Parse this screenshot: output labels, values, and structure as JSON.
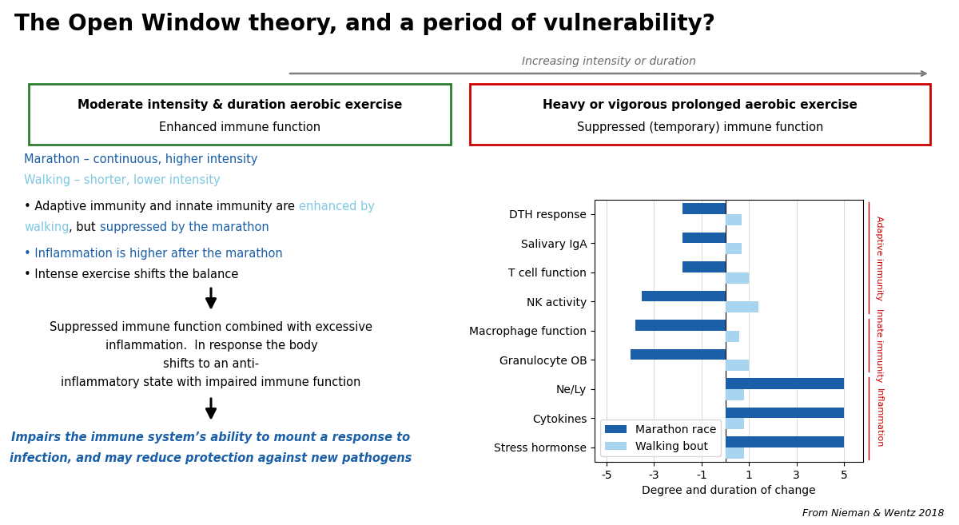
{
  "chart_data": {
    "type": "bar",
    "orientation": "horizontal",
    "title": "The Open Window theory, and a period of vulnerability?",
    "arrow_label": "Increasing intensity or duration",
    "boxes": [
      {
        "title": "Moderate intensity & duration aerobic exercise",
        "subtitle": "Enhanced immune function",
        "color": "#2e7d32"
      },
      {
        "title": "Heavy or vigorous prolonged aerobic exercise",
        "subtitle": "Suppressed (temporary) immune function",
        "color": "#cc0000"
      }
    ],
    "notes_top": [
      [
        {
          "text": "Marathon – continuous, higher intensity",
          "color": "#1a5fa8"
        }
      ],
      [
        {
          "text": "Walking – shorter, lower intensity",
          "color": "#7ec8e3"
        }
      ],
      [
        {
          "text": "• Adaptive immunity and innate immunity are ",
          "color": "#000000"
        },
        {
          "text": "enhanced by",
          "color": "#7ec8e3"
        }
      ],
      [
        {
          "text": "walking",
          "color": "#7ec8e3"
        },
        {
          "text": ", but ",
          "color": "#000000"
        },
        {
          "text": "suppressed by the marathon",
          "color": "#1a5fa8"
        }
      ],
      [
        {
          "text": "• Inflammation is higher after the marathon",
          "color": "#1a5fa8"
        }
      ],
      [
        {
          "text": "• Intense exercise shifts the balance",
          "color": "#000000"
        }
      ]
    ],
    "notes_middle": [
      [
        {
          "text": "Suppressed immune function combined with excessive",
          "color": "#000000"
        }
      ],
      [
        {
          "text": "inflammation.  In response the body",
          "color": "#000000"
        }
      ],
      [
        {
          "text": "shifts to an anti-",
          "color": "#000000"
        }
      ],
      [
        {
          "text": "inflammatory state with impaired immune function",
          "color": "#000000"
        }
      ]
    ],
    "notes_bottom": [
      [
        {
          "text": "Impairs the immune system’s ability to mount a response to",
          "color": "#1a5fa8"
        }
      ],
      [
        {
          "text": "infection, and may reduce protection against new pathogens",
          "color": "#1a5fa8"
        }
      ]
    ],
    "citation": "From Nieman & Wentz 2018",
    "categories": [
      "DTH response",
      "Salivary IgA",
      "T cell function",
      "NK activity",
      "Macrophage function",
      "Granulocyte OB",
      "Ne/Ly",
      "Cytokines",
      "Stress hormonse"
    ],
    "series": [
      {
        "name": "Marathon race",
        "color": "#1a5fa8",
        "values": [
          -1.8,
          -1.8,
          -1.8,
          -3.5,
          -3.8,
          -4.0,
          5.0,
          5.0,
          5.0
        ]
      },
      {
        "name": "Walking bout",
        "color": "#a8d4f0",
        "values": [
          0.7,
          0.7,
          1.0,
          1.4,
          0.6,
          1.0,
          0.8,
          0.8,
          0.8
        ]
      }
    ],
    "category_groups": [
      {
        "name": "Adaptive immunity",
        "count": 4
      },
      {
        "name": "Innate immunity",
        "count": 2
      },
      {
        "name": "Inflammation",
        "count": 3
      }
    ],
    "group_color": "#cc0000",
    "xlabel": "Degree and duration of change",
    "xlim": [
      -5.5,
      5.8
    ],
    "xticks": [
      -5,
      -3,
      -1,
      1,
      3,
      5
    ],
    "grid": true,
    "legend": "lower left"
  }
}
